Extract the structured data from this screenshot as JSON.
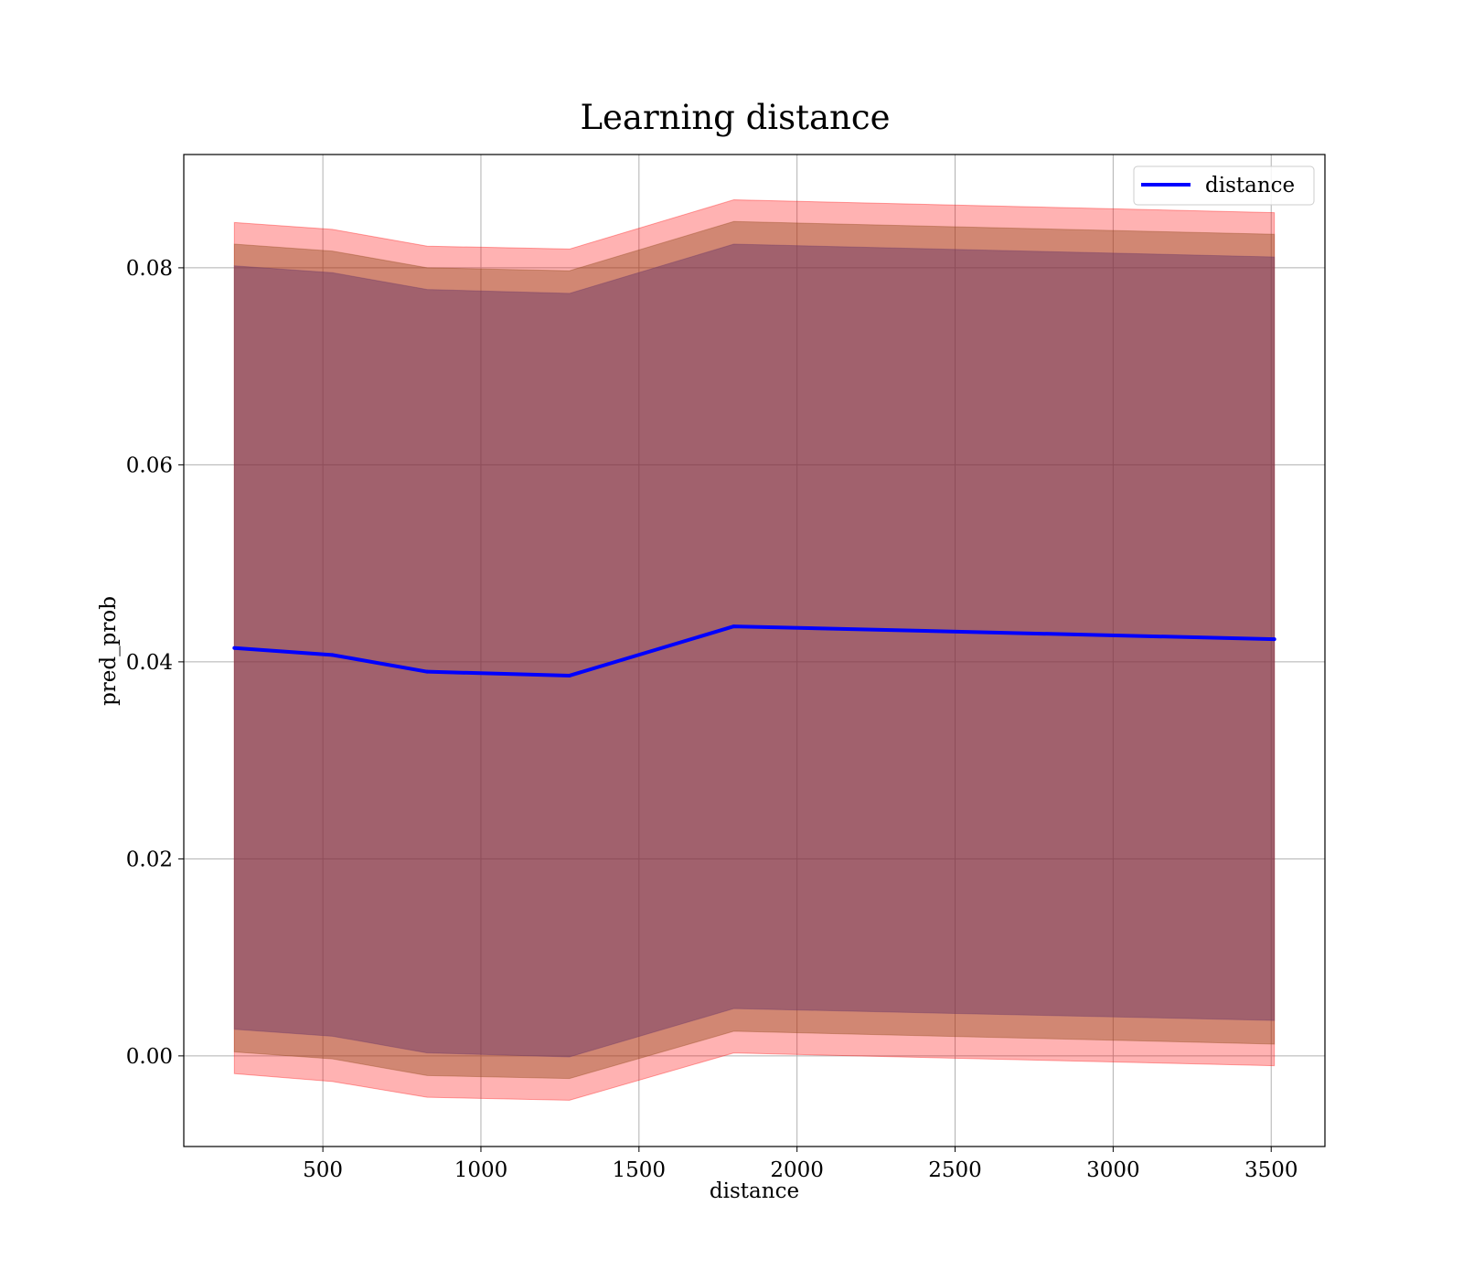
{
  "chart_data": {
    "type": "line",
    "title": "Learning distance",
    "xlabel": "distance",
    "ylabel": "pred_prob",
    "xlim": [
      60,
      3670
    ],
    "ylim": [
      -0.0092,
      0.0915
    ],
    "xticks": [
      500,
      1000,
      1500,
      2000,
      2500,
      3000,
      3500
    ],
    "xtick_labels": [
      "500",
      "1000",
      "1500",
      "2000",
      "2500",
      "3000",
      "3500"
    ],
    "yticks": [
      0.0,
      0.02,
      0.04,
      0.06,
      0.08
    ],
    "ytick_labels": [
      "0.00",
      "0.02",
      "0.04",
      "0.06",
      "0.08"
    ],
    "grid": true,
    "legend": {
      "position": "top-right",
      "entries": [
        "distance"
      ]
    },
    "x": [
      220,
      530,
      830,
      1280,
      1800,
      3510
    ],
    "series": [
      {
        "name": "distance",
        "color": "#0000ff",
        "values": [
          0.0414,
          0.0407,
          0.039,
          0.0386,
          0.0436,
          0.0423
        ]
      }
    ],
    "bands": [
      {
        "color": "#ff0000",
        "opacity": 0.3,
        "lower": [
          -0.0018,
          -0.0026,
          -0.0042,
          -0.0045,
          0.0003,
          -0.001
        ],
        "upper": [
          0.0846,
          0.0839,
          0.0822,
          0.0819,
          0.0869,
          0.0856
        ]
      },
      {
        "color": "#8b4513",
        "opacity": 0.4,
        "lower": [
          0.0004,
          -0.0003,
          -0.002,
          -0.0023,
          0.0025,
          0.0012
        ],
        "upper": [
          0.0824,
          0.0817,
          0.08,
          0.0797,
          0.0847,
          0.0834
        ]
      },
      {
        "color": "#663366",
        "opacity": 0.45,
        "lower": [
          0.0027,
          0.002,
          0.0003,
          -0.0001,
          0.0048,
          0.0036
        ],
        "upper": [
          0.0802,
          0.0795,
          0.0778,
          0.0774,
          0.0824,
          0.0811
        ]
      }
    ]
  }
}
